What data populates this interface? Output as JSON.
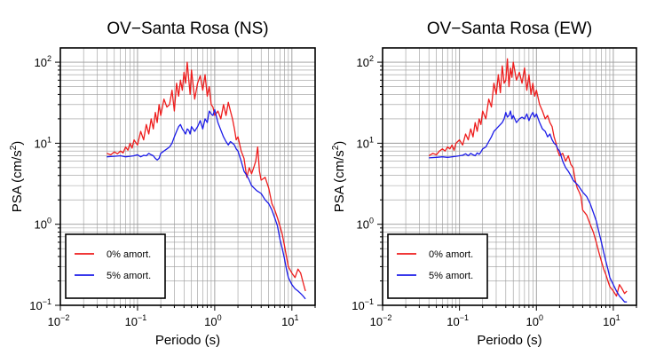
{
  "figure": {
    "background": "#ffffff"
  },
  "chart_data": [
    {
      "type": "line",
      "title": "OV−Santa Rosa (NS)",
      "xlabel": "Periodo (s)",
      "ylabel_main": "PSA (cm/s",
      "ylabel_sup": "2",
      "ylabel_end": ")",
      "xscale": "log",
      "yscale": "log",
      "xlim": [
        0.01,
        20
      ],
      "ylim": [
        0.1,
        150
      ],
      "grid": true,
      "legend_position": "bottom-left",
      "x_ticks": [
        {
          "value": 0.01,
          "base": "10",
          "exp": "−2"
        },
        {
          "value": 0.1,
          "base": "10",
          "exp": "−1"
        },
        {
          "value": 1,
          "base": "10",
          "exp": "0"
        },
        {
          "value": 10,
          "base": "10",
          "exp": "1"
        }
      ],
      "y_ticks": [
        {
          "value": 0.1,
          "base": "10",
          "exp": "−1"
        },
        {
          "value": 1,
          "base": "10",
          "exp": "0"
        },
        {
          "value": 10,
          "base": "10",
          "exp": "1"
        },
        {
          "value": 100,
          "base": "10",
          "exp": "2"
        }
      ],
      "series": [
        {
          "name": "0% amort.",
          "color": "#ee1c1c",
          "x": [
            0.04,
            0.045,
            0.05,
            0.055,
            0.06,
            0.065,
            0.07,
            0.075,
            0.08,
            0.085,
            0.09,
            0.1,
            0.11,
            0.12,
            0.13,
            0.14,
            0.15,
            0.16,
            0.17,
            0.18,
            0.19,
            0.2,
            0.22,
            0.24,
            0.26,
            0.28,
            0.3,
            0.32,
            0.34,
            0.36,
            0.38,
            0.4,
            0.42,
            0.44,
            0.46,
            0.48,
            0.5,
            0.55,
            0.6,
            0.65,
            0.7,
            0.75,
            0.8,
            0.85,
            0.9,
            0.95,
            1.0,
            1.1,
            1.2,
            1.3,
            1.4,
            1.5,
            1.6,
            1.7,
            1.8,
            1.9,
            2.0,
            2.2,
            2.4,
            2.6,
            2.8,
            3.0,
            3.2,
            3.4,
            3.6,
            3.8,
            4.0,
            4.5,
            5.0,
            5.5,
            6.0,
            6.5,
            7.0,
            7.5,
            8.0,
            8.5,
            9.0,
            10,
            11,
            12,
            13,
            14,
            15
          ],
          "y": [
            7.5,
            7.2,
            7.8,
            7.4,
            8,
            7.6,
            9,
            8.2,
            10,
            8.7,
            11,
            9.5,
            14,
            11,
            17,
            13,
            20,
            15,
            24,
            18,
            30,
            22,
            35,
            28,
            30,
            45,
            25,
            55,
            38,
            60,
            45,
            75,
            55,
            100,
            62,
            40,
            80,
            35,
            55,
            68,
            45,
            70,
            38,
            50,
            30,
            28,
            22,
            25,
            20,
            30,
            22,
            32,
            25,
            20,
            15,
            11,
            12,
            8,
            6.5,
            3.8,
            5,
            4.2,
            5,
            6,
            9,
            4.5,
            3.5,
            3.8,
            2.8,
            1.8,
            1.5,
            1.2,
            0.95,
            0.75,
            0.55,
            0.4,
            0.3,
            0.25,
            0.22,
            0.28,
            0.25,
            0.19,
            0.15
          ]
        },
        {
          "name": "5% amort.",
          "color": "#1c1ce8",
          "x": [
            0.04,
            0.05,
            0.06,
            0.07,
            0.08,
            0.09,
            0.1,
            0.11,
            0.12,
            0.13,
            0.14,
            0.15,
            0.16,
            0.17,
            0.18,
            0.19,
            0.2,
            0.22,
            0.24,
            0.26,
            0.28,
            0.3,
            0.32,
            0.34,
            0.36,
            0.38,
            0.4,
            0.42,
            0.44,
            0.46,
            0.48,
            0.5,
            0.55,
            0.6,
            0.65,
            0.7,
            0.75,
            0.8,
            0.85,
            0.9,
            0.95,
            1.0,
            1.1,
            1.2,
            1.3,
            1.4,
            1.5,
            1.6,
            1.7,
            1.8,
            1.9,
            2.0,
            2.2,
            2.4,
            2.6,
            2.8,
            3.0,
            3.5,
            4.0,
            4.5,
            5.0,
            5.5,
            6.0,
            6.5,
            7.0,
            7.5,
            8.0,
            8.5,
            9.0,
            10,
            11,
            12,
            13,
            14,
            15
          ],
          "y": [
            6.8,
            6.9,
            7.0,
            6.8,
            6.9,
            7.0,
            7.2,
            6.8,
            7.1,
            7.0,
            7.5,
            7.2,
            7.0,
            6.5,
            6.2,
            6.5,
            7.5,
            8.0,
            8.5,
            9.0,
            10,
            12,
            14,
            16,
            17,
            15,
            14,
            13,
            15,
            14.5,
            13,
            16,
            14,
            16,
            19,
            15,
            20,
            18,
            25,
            23,
            22,
            26,
            18,
            14.5,
            12,
            10.5,
            9.5,
            10.5,
            10.0,
            9.5,
            8.5,
            8.0,
            6.0,
            4.5,
            4.0,
            3.5,
            3.0,
            2.6,
            2.4,
            2.0,
            1.8,
            1.5,
            1.2,
            0.95,
            0.65,
            0.5,
            0.38,
            0.28,
            0.22,
            0.18,
            0.16,
            0.15,
            0.14,
            0.13,
            0.12
          ]
        }
      ]
    },
    {
      "type": "line",
      "title": "OV−Santa Rosa (EW)",
      "xlabel": "Periodo (s)",
      "ylabel_main": "PSA (cm/s",
      "ylabel_sup": "2",
      "ylabel_end": ")",
      "xscale": "log",
      "yscale": "log",
      "xlim": [
        0.01,
        20
      ],
      "ylim": [
        0.1,
        150
      ],
      "grid": true,
      "legend_position": "bottom-left",
      "x_ticks": [
        {
          "value": 0.01,
          "base": "10",
          "exp": "−2"
        },
        {
          "value": 0.1,
          "base": "10",
          "exp": "−1"
        },
        {
          "value": 1,
          "base": "10",
          "exp": "0"
        },
        {
          "value": 10,
          "base": "10",
          "exp": "1"
        }
      ],
      "y_ticks": [
        {
          "value": 0.1,
          "base": "10",
          "exp": "−1"
        },
        {
          "value": 1,
          "base": "10",
          "exp": "0"
        },
        {
          "value": 10,
          "base": "10",
          "exp": "1"
        },
        {
          "value": 100,
          "base": "10",
          "exp": "2"
        }
      ],
      "series": [
        {
          "name": "0% amort.",
          "color": "#ee1c1c",
          "x": [
            0.04,
            0.045,
            0.05,
            0.055,
            0.06,
            0.065,
            0.07,
            0.075,
            0.08,
            0.085,
            0.09,
            0.1,
            0.11,
            0.12,
            0.13,
            0.14,
            0.15,
            0.16,
            0.17,
            0.18,
            0.19,
            0.2,
            0.22,
            0.24,
            0.26,
            0.28,
            0.3,
            0.32,
            0.34,
            0.36,
            0.38,
            0.4,
            0.42,
            0.44,
            0.46,
            0.48,
            0.5,
            0.55,
            0.6,
            0.65,
            0.7,
            0.75,
            0.8,
            0.85,
            0.9,
            0.95,
            1.0,
            1.1,
            1.2,
            1.3,
            1.4,
            1.5,
            1.6,
            1.7,
            1.8,
            1.9,
            2.0,
            2.2,
            2.4,
            2.6,
            2.8,
            3.0,
            3.2,
            3.4,
            3.6,
            3.8,
            4.0,
            4.5,
            5.0,
            5.5,
            6.0,
            6.5,
            7.0,
            7.5,
            8.0,
            8.5,
            9.0,
            10,
            11,
            12,
            13,
            14,
            15
          ],
          "y": [
            7.0,
            7.5,
            7.2,
            8.0,
            8.5,
            8.0,
            9.0,
            8.5,
            9.5,
            8.2,
            10,
            11,
            9.5,
            13,
            11,
            15,
            12,
            18,
            14,
            20,
            17,
            25,
            20,
            35,
            28,
            55,
            40,
            70,
            42,
            90,
            55,
            60,
            110,
            50,
            85,
            65,
            100,
            60,
            75,
            55,
            85,
            45,
            70,
            40,
            55,
            38,
            45,
            30,
            25,
            20,
            22,
            18,
            16,
            12,
            10,
            8,
            7,
            7.5,
            6,
            7,
            5.5,
            5,
            3.5,
            2.8,
            2.5,
            2.2,
            1.5,
            1.3,
            1.0,
            0.8,
            0.6,
            0.45,
            0.35,
            0.28,
            0.24,
            0.2,
            0.17,
            0.15,
            0.13,
            0.18,
            0.16,
            0.14,
            0.15
          ]
        },
        {
          "name": "5% amort.",
          "color": "#1c1ce8",
          "x": [
            0.04,
            0.05,
            0.06,
            0.07,
            0.08,
            0.09,
            0.1,
            0.11,
            0.12,
            0.13,
            0.14,
            0.15,
            0.16,
            0.17,
            0.18,
            0.19,
            0.2,
            0.22,
            0.24,
            0.26,
            0.28,
            0.3,
            0.32,
            0.34,
            0.36,
            0.38,
            0.4,
            0.42,
            0.44,
            0.46,
            0.48,
            0.5,
            0.55,
            0.6,
            0.65,
            0.7,
            0.75,
            0.8,
            0.85,
            0.9,
            0.95,
            1.0,
            1.1,
            1.2,
            1.3,
            1.4,
            1.5,
            1.6,
            1.7,
            1.8,
            1.9,
            2.0,
            2.2,
            2.4,
            2.6,
            2.8,
            3.0,
            3.5,
            4.0,
            4.5,
            5.0,
            5.5,
            6.0,
            6.5,
            7.0,
            7.5,
            8.0,
            8.5,
            9.0,
            10,
            11,
            12,
            13,
            14,
            15
          ],
          "y": [
            6.6,
            6.7,
            6.8,
            6.7,
            6.8,
            6.9,
            7.0,
            7.1,
            7.4,
            7.0,
            7.5,
            7.2,
            7.0,
            7.6,
            7.3,
            7.8,
            8.5,
            9.0,
            10.5,
            12,
            14,
            15,
            16,
            17,
            18,
            20,
            24,
            21,
            22,
            25,
            20,
            22,
            18,
            20,
            21,
            20,
            23,
            19,
            22,
            24,
            21,
            23,
            18,
            15,
            14,
            12,
            13,
            11,
            10,
            9.5,
            8.5,
            8.0,
            6.0,
            5.0,
            4.5,
            4.0,
            3.5,
            3.0,
            2.5,
            2.2,
            1.8,
            1.4,
            1.1,
            0.8,
            0.6,
            0.45,
            0.35,
            0.28,
            0.22,
            0.18,
            0.15,
            0.13,
            0.12,
            0.11,
            0.11
          ]
        }
      ]
    }
  ]
}
